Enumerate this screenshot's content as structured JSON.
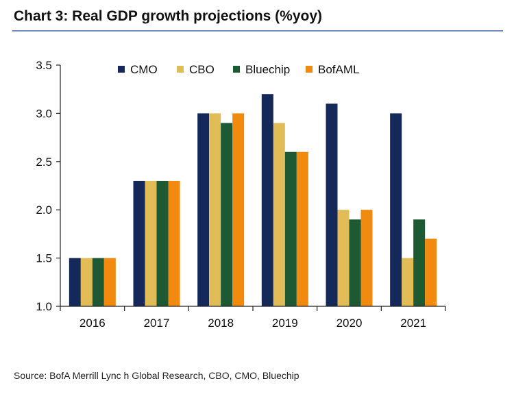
{
  "chart_data": {
    "type": "bar",
    "title": "Chart 3: Real GDP growth projections (%yoy)",
    "categories": [
      "2016",
      "2017",
      "2018",
      "2019",
      "2020",
      "2021"
    ],
    "series": [
      {
        "name": "CMO",
        "color": "#14285a",
        "values": [
          1.5,
          2.3,
          3.0,
          3.2,
          3.1,
          3.0
        ]
      },
      {
        "name": "CBO",
        "color": "#e2bd57",
        "values": [
          1.5,
          2.3,
          3.0,
          2.9,
          2.0,
          1.5
        ]
      },
      {
        "name": "Bluechip",
        "color": "#1d5a33",
        "values": [
          1.5,
          2.3,
          2.9,
          2.6,
          1.9,
          1.9
        ]
      },
      {
        "name": "BofAML",
        "color": "#f28a10",
        "values": [
          1.5,
          2.3,
          3.0,
          2.6,
          2.0,
          1.7
        ]
      }
    ],
    "ylim": [
      1.0,
      3.5
    ],
    "yticks": [
      "1.0",
      "1.5",
      "2.0",
      "2.5",
      "3.0",
      "3.5"
    ],
    "xlabel": "",
    "ylabel": "",
    "legend_position": "top"
  },
  "source": "Source: BofA Merrill Lync h Global Research, CBO, CMO, Bluechip"
}
